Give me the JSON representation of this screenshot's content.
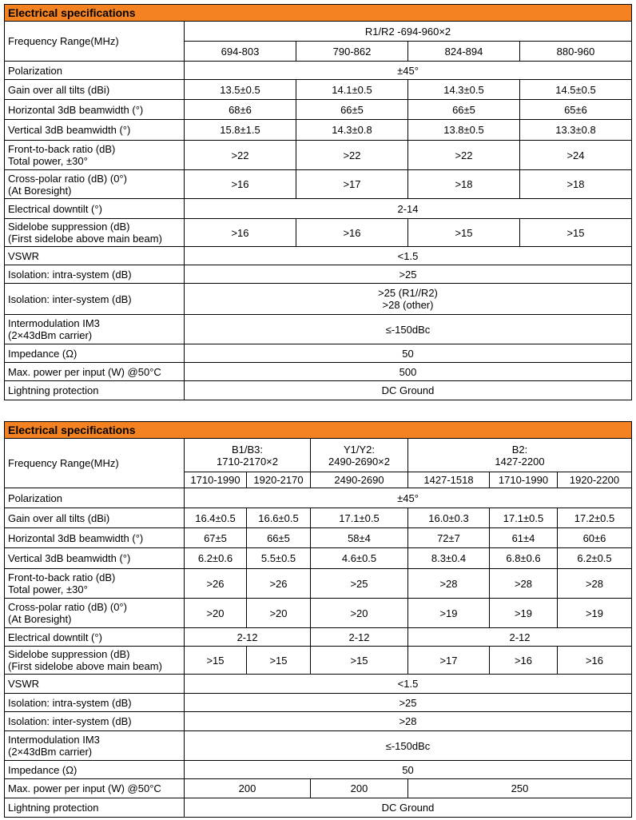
{
  "tables": [
    {
      "title": "Electrical specifications",
      "frequency": {
        "label": "Frequency Range(MHz)",
        "groups": [
          "R1/R2 -694-960×2"
        ],
        "bands": [
          "694-803",
          "790-862",
          "824-894",
          "880-960"
        ]
      },
      "rows": [
        {
          "label": "Polarization",
          "values": [
            "±45°"
          ]
        },
        {
          "label": "Gain over all tilts (dBi)",
          "values": [
            "13.5±0.5",
            "14.1±0.5",
            "14.3±0.5",
            "14.5±0.5"
          ]
        },
        {
          "label": "Horizontal 3dB beamwidth (°)",
          "values": [
            "68±6",
            "66±5",
            "66±5",
            "65±6"
          ]
        },
        {
          "label": "Vertical 3dB beamwidth (°)",
          "values": [
            "15.8±1.5",
            "14.3±0.8",
            "13.8±0.5",
            "13.3±0.8"
          ]
        },
        {
          "label": "Front-to-back ratio (dB)\nTotal power, ±30°",
          "values": [
            ">22",
            ">22",
            ">22",
            ">24"
          ]
        },
        {
          "label": "Cross-polar ratio (dB) (0°)\n(At Boresight)",
          "values": [
            ">16",
            ">17",
            ">18",
            ">18"
          ]
        },
        {
          "label": "Electrical downtilt (°)",
          "values": [
            "2-14"
          ]
        },
        {
          "label": "Sidelobe suppression (dB)\n(First sidelobe above main beam)",
          "values": [
            ">16",
            ">16",
            ">15",
            ">15"
          ]
        },
        {
          "label": "VSWR",
          "values": [
            "<1.5"
          ]
        },
        {
          "label": "Isolation: intra-system (dB)",
          "values": [
            ">25"
          ]
        },
        {
          "label": "Isolation: inter-system (dB)",
          "values": [
            ">25 (R1//R2)\n>28 (other)"
          ]
        },
        {
          "label": "Intermodulation IM3\n(2×43dBm carrier)",
          "values": [
            "≤-150dBc"
          ]
        },
        {
          "label": "Impedance (Ω)",
          "values": [
            "50"
          ]
        },
        {
          "label": "Max. power per input (W) @50°C",
          "values": [
            "500"
          ]
        },
        {
          "label": "Lightning protection",
          "values": [
            "DC Ground"
          ]
        }
      ]
    },
    {
      "title": "Electrical specifications",
      "frequency": {
        "label": "Frequency Range(MHz)",
        "groups": [
          "B1/B3:\n1710-2170×2",
          "Y1/Y2:\n2490-2690×2",
          "B2:\n1427-2200"
        ],
        "bands": [
          "1710-1990",
          "1920-2170",
          "2490-2690",
          "1427-1518",
          "1710-1990",
          "1920-2200"
        ]
      },
      "rows": [
        {
          "label": "Polarization",
          "values": [
            "±45°"
          ]
        },
        {
          "label": "Gain over all tilts (dBi)",
          "values": [
            "16.4±0.5",
            "16.6±0.5",
            "17.1±0.5",
            "16.0±0.3",
            "17.1±0.5",
            "17.2±0.5"
          ]
        },
        {
          "label": "Horizontal 3dB beamwidth (°)",
          "values": [
            "67±5",
            "66±5",
            "58±4",
            "72±7",
            "61±4",
            "60±6"
          ]
        },
        {
          "label": "Vertical 3dB beamwidth (°)",
          "values": [
            "6.2±0.6",
            "5.5±0.5",
            "4.6±0.5",
            "8.3±0.4",
            "6.8±0.6",
            "6.2±0.5"
          ]
        },
        {
          "label": "Front-to-back ratio (dB)\nTotal power, ±30°",
          "values": [
            ">26",
            ">26",
            ">25",
            ">28",
            ">28",
            ">28"
          ]
        },
        {
          "label": "Cross-polar ratio (dB) (0°)\n(At Boresight)",
          "values": [
            ">20",
            ">20",
            ">20",
            ">19",
            ">19",
            ">19"
          ]
        },
        {
          "label": "Electrical downtilt (°)",
          "values": [
            "2-12",
            "2-12",
            "2-12"
          ]
        },
        {
          "label": "Sidelobe suppression (dB)\n(First sidelobe above main beam)",
          "values": [
            ">15",
            ">15",
            ">15",
            ">17",
            ">16",
            ">16"
          ]
        },
        {
          "label": "VSWR",
          "values": [
            "<1.5"
          ]
        },
        {
          "label": "Isolation: intra-system (dB)",
          "values": [
            ">25"
          ]
        },
        {
          "label": "Isolation: inter-system (dB)",
          "values": [
            ">28"
          ]
        },
        {
          "label": "Intermodulation IM3\n(2×43dBm carrier)",
          "values": [
            "≤-150dBc"
          ]
        },
        {
          "label": "Impedance (Ω)",
          "values": [
            "50"
          ]
        },
        {
          "label": "Max. power per input (W) @50°C",
          "values": [
            "200",
            "200",
            "250"
          ]
        },
        {
          "label": "Lightning protection",
          "values": [
            "DC Ground"
          ]
        }
      ]
    }
  ]
}
